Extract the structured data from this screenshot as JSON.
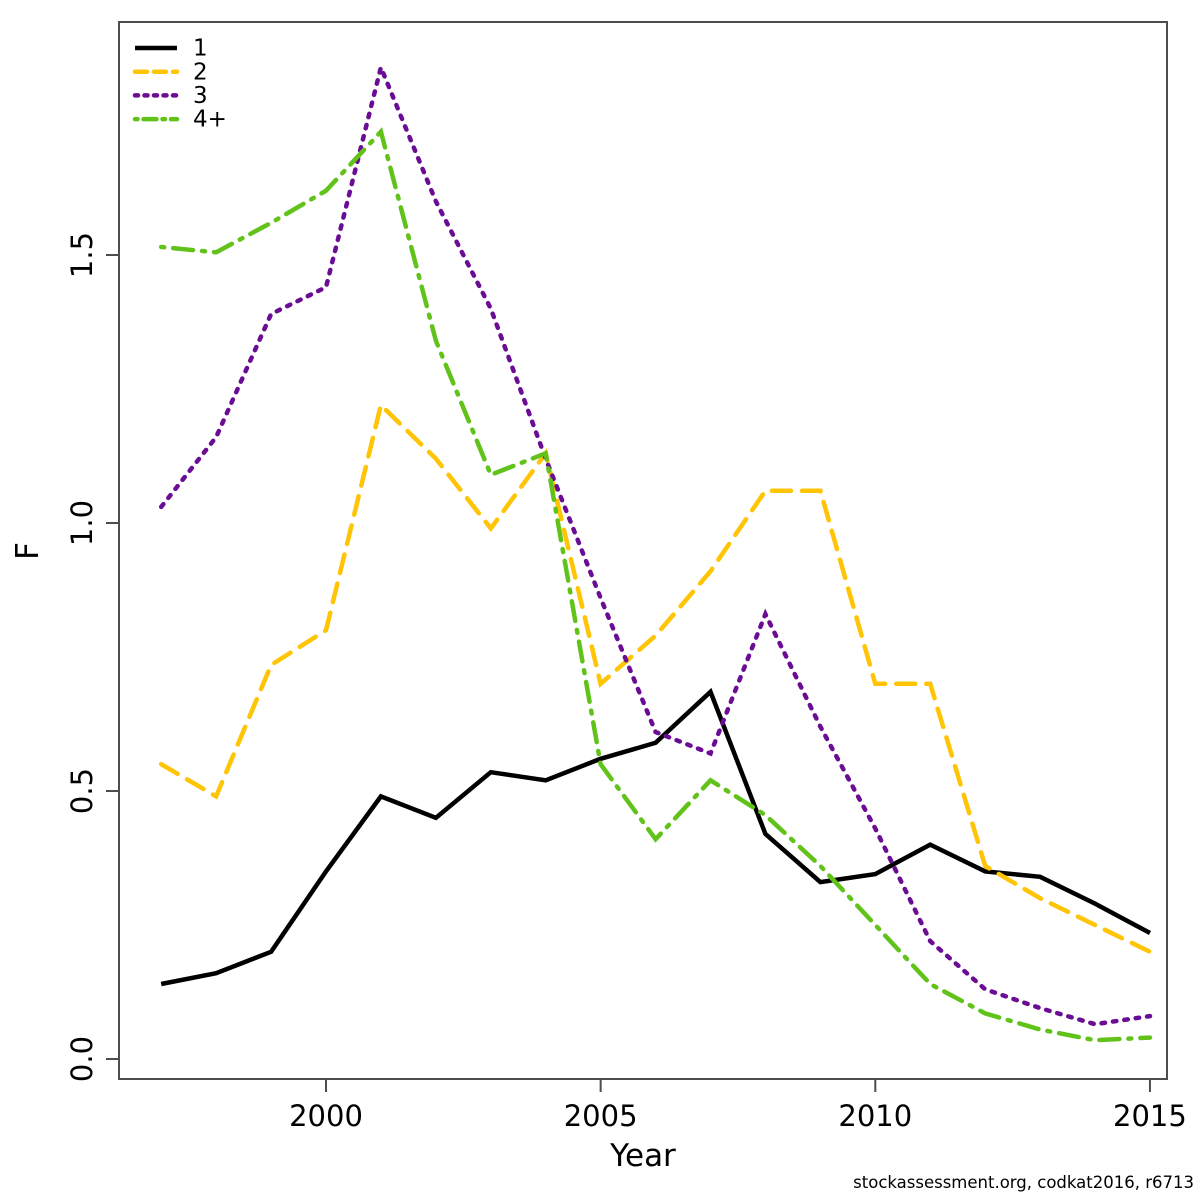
{
  "page": {
    "background": "#FFFFFF"
  },
  "footer": {
    "text": "stockassessment.org, codkat2016, r6713"
  },
  "chart_data": {
    "type": "line",
    "title": "",
    "xlabel": "Year",
    "ylabel": "F",
    "grid": false,
    "legend_position": "top-left-inside",
    "frame": "box",
    "frame_color": "#4d4d4d",
    "text_color": "#000000",
    "x": [
      1997,
      1998,
      1999,
      2000,
      2001,
      2002,
      2003,
      2004,
      2005,
      2006,
      2007,
      2008,
      2009,
      2010,
      2011,
      2012,
      2013,
      2014,
      2015
    ],
    "xticks": [
      2000,
      2005,
      2010,
      2015
    ],
    "yticks": [
      0.0,
      0.5,
      1.0,
      1.5
    ],
    "ytick_labels": [
      "0.0",
      "0.5",
      "1.0",
      "1.5"
    ],
    "xlim": [
      1996.2,
      2015.3
    ],
    "ylim": [
      -0.04,
      1.93
    ],
    "series": [
      {
        "name": "1",
        "color": "#000000",
        "style": "solid",
        "values": [
          0.14,
          0.16,
          0.2,
          0.35,
          0.49,
          0.45,
          0.535,
          0.52,
          0.56,
          0.59,
          0.685,
          0.42,
          0.33,
          0.345,
          0.4,
          0.35,
          0.34,
          0.29,
          0.235
        ]
      },
      {
        "name": "2",
        "color": "#FFC404",
        "style": "longdash",
        "values": [
          0.55,
          0.49,
          0.735,
          0.8,
          1.22,
          1.12,
          0.99,
          1.13,
          0.7,
          0.79,
          0.91,
          1.06,
          1.06,
          0.7,
          0.7,
          0.36,
          0.3,
          0.25,
          0.2
        ]
      },
      {
        "name": "3",
        "color": "#6A0D94",
        "style": "dotted",
        "values": [
          1.03,
          1.16,
          1.39,
          1.44,
          1.85,
          1.6,
          1.4,
          1.12,
          0.86,
          0.61,
          0.57,
          0.83,
          0.62,
          0.43,
          0.22,
          0.13,
          0.095,
          0.065,
          0.08
        ]
      },
      {
        "name": "4+",
        "color": "#61C31A",
        "style": "dashdot",
        "values": [
          1.515,
          1.505,
          1.56,
          1.62,
          1.73,
          1.34,
          1.09,
          1.13,
          0.55,
          0.41,
          0.52,
          0.455,
          0.36,
          0.25,
          0.14,
          0.085,
          0.055,
          0.035,
          0.04
        ]
      }
    ]
  }
}
